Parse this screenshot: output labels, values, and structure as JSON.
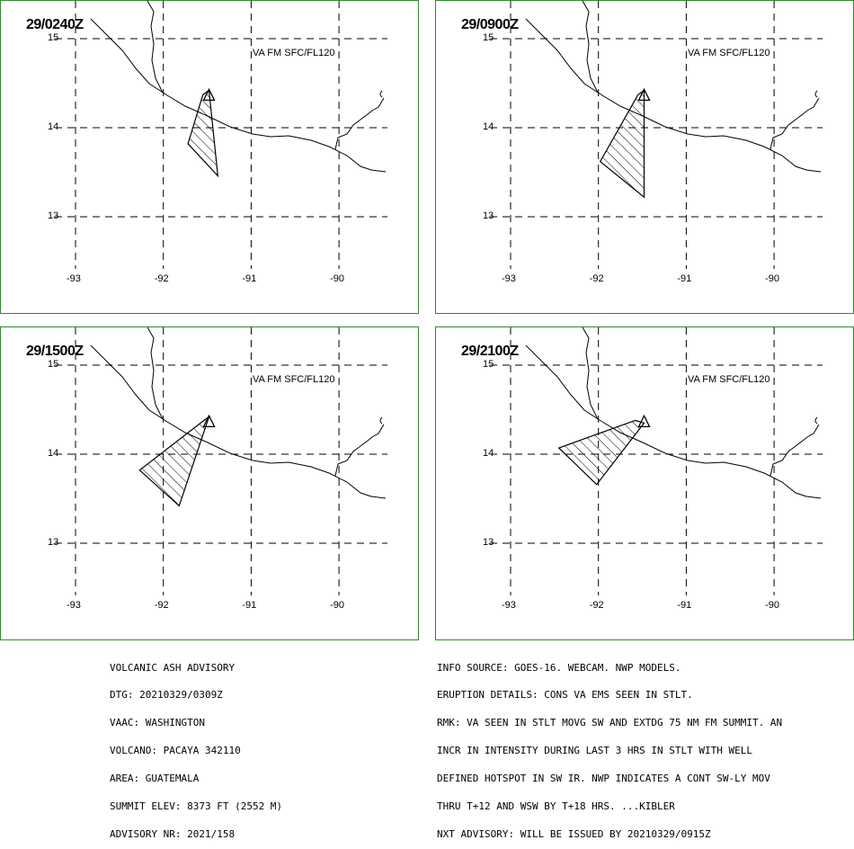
{
  "panels": [
    {
      "time": "29/0240Z",
      "label": "VA FM SFC/FL120",
      "polygon": [
        [
          -91.55,
          14.37
        ],
        [
          -91.72,
          13.82
        ],
        [
          -91.38,
          13.46
        ],
        [
          -91.48,
          14.42
        ]
      ]
    },
    {
      "time": "29/0900Z",
      "label": "VA FM SFC/FL120",
      "polygon": [
        [
          -91.55,
          14.37
        ],
        [
          -91.98,
          13.62
        ],
        [
          -91.48,
          13.22
        ],
        [
          -91.48,
          14.42
        ]
      ]
    },
    {
      "time": "29/1500Z",
      "label": "VA FM SFC/FL120",
      "polygon": [
        [
          -91.55,
          14.37
        ],
        [
          -92.27,
          13.82
        ],
        [
          -91.82,
          13.42
        ],
        [
          -91.48,
          14.42
        ]
      ]
    },
    {
      "time": "29/2100Z",
      "label": "VA FM SFC/FL120",
      "polygon": [
        [
          -91.58,
          14.38
        ],
        [
          -92.45,
          14.07
        ],
        [
          -92.02,
          13.66
        ],
        [
          -91.48,
          14.35
        ]
      ]
    }
  ],
  "axes": {
    "lat_ticks": [
      "15",
      "14",
      "13"
    ],
    "lon_ticks": [
      "-93",
      "-92",
      "-91",
      "-90"
    ]
  },
  "advisory_left": [
    "VOLCANIC ASH ADVISORY",
    "DTG: 20210329/0309Z",
    "VAAC: WASHINGTON",
    "VOLCANO: PACAYA 342110",
    "AREA: GUATEMALA",
    "SUMMIT ELEV: 8373 FT (2552 M)",
    "ADVISORY NR: 2021/158"
  ],
  "advisory_right": [
    "INFO SOURCE: GOES-16. WEBCAM. NWP MODELS.",
    "ERUPTION DETAILS: CONS VA EMS SEEN IN STLT.",
    "RMK: VA SEEN IN STLT MOVG SW AND EXTDG 75 NM FM SUMMIT. AN",
    "INCR IN INTENSITY DURING LAST 3 HRS IN STLT WITH WELL",
    "DEFINED HOTSPOT IN SW IR. NWP INDICATES A CONT SW-LY MOV",
    "THRU T+12 AND WSW BY T+18 HRS. ...KIBLER",
    "NXT ADVISORY: WILL BE ISSUED BY 20210329/0915Z"
  ],
  "colors": {
    "frame": "#2e8b2e",
    "ink": "#000000"
  }
}
